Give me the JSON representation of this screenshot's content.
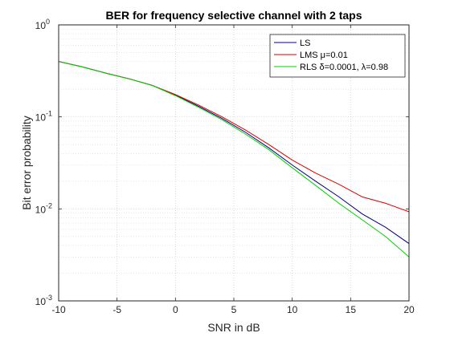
{
  "chart_data": {
    "type": "line",
    "title": "BER for frequency selective channel with 2 taps",
    "xlabel": "SNR in dB",
    "ylabel": "Bit error probability",
    "xlim": [
      -10,
      20
    ],
    "ylim": [
      0.001,
      1
    ],
    "yscale": "log",
    "grid": true,
    "minor_grid": true,
    "legend_position": "top-right",
    "x_ticks": [
      {
        "value": -10,
        "label": "-10"
      },
      {
        "value": -5,
        "label": "-5"
      },
      {
        "value": 0,
        "label": "0"
      },
      {
        "value": 5,
        "label": "5"
      },
      {
        "value": 10,
        "label": "10"
      },
      {
        "value": 15,
        "label": "15"
      },
      {
        "value": 20,
        "label": "20"
      }
    ],
    "y_ticks": [
      {
        "value": 1,
        "base": "10",
        "exp": "0"
      },
      {
        "value": 0.1,
        "base": "10",
        "exp": "-1"
      },
      {
        "value": 0.01,
        "base": "10",
        "exp": "-2"
      },
      {
        "value": 0.001,
        "base": "10",
        "exp": "-3"
      }
    ],
    "x": [
      -10,
      -8,
      -6,
      -4,
      -2,
      0,
      2,
      4,
      6,
      8,
      10,
      12,
      14,
      16,
      18,
      20
    ],
    "series": [
      {
        "name": "LS",
        "color": "#00007f",
        "values": [
          0.4,
          0.35,
          0.3,
          0.26,
          0.22,
          0.172,
          0.13,
          0.096,
          0.068,
          0.046,
          0.03,
          0.02,
          0.0135,
          0.0088,
          0.0063,
          0.0042
        ]
      },
      {
        "name": "LMS μ=0.01",
        "color": "#d90000",
        "values": [
          0.4,
          0.35,
          0.3,
          0.26,
          0.22,
          0.175,
          0.134,
          0.1,
          0.072,
          0.05,
          0.034,
          0.0245,
          0.0185,
          0.0135,
          0.0115,
          0.0093
        ]
      },
      {
        "name": "RLS δ=0.0001, λ=0.98",
        "color": "#00d000",
        "values": [
          0.4,
          0.35,
          0.3,
          0.26,
          0.22,
          0.17,
          0.127,
          0.093,
          0.065,
          0.044,
          0.028,
          0.018,
          0.0115,
          0.0076,
          0.005,
          0.003
        ]
      }
    ]
  }
}
